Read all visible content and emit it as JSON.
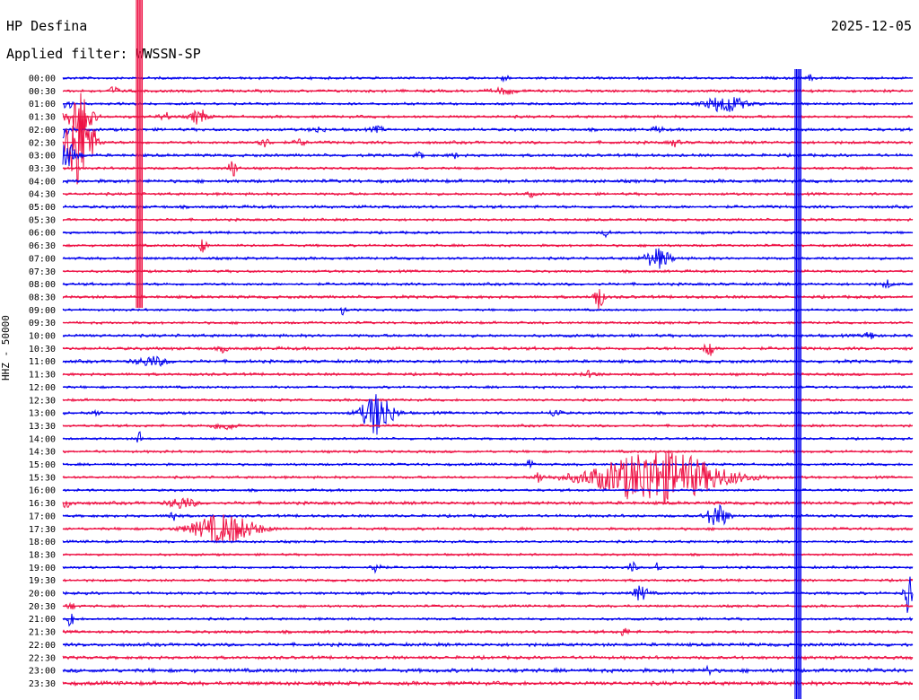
{
  "header": {
    "station": "HP Desfina",
    "filter": "Applied filter: WWSSN-SP",
    "date": "2025-12-05"
  },
  "colors": {
    "blue": "#0000ee",
    "red": "#ee1144"
  },
  "chart_data": {
    "type": "line",
    "title": "HP Desfina",
    "subtitle": "Applied filter: WWSSN-SP",
    "date": "2025-12-05",
    "ylabel": "HHZ - 50000",
    "grid": false,
    "row_interval_minutes": 30,
    "rows": [
      {
        "label": "00:00",
        "color": "blue",
        "noise": 1.2,
        "events": [
          {
            "x": 0.52,
            "amp": 4,
            "w": 0.003
          },
          {
            "x": 0.88,
            "amp": 3,
            "w": 0.003
          }
        ]
      },
      {
        "label": "00:30",
        "color": "red",
        "noise": 1.3,
        "events": [
          {
            "x": 0.06,
            "amp": 6,
            "w": 0.003
          },
          {
            "x": 0.52,
            "amp": 3,
            "w": 0.01
          }
        ]
      },
      {
        "label": "01:00",
        "color": "blue",
        "noise": 1.2,
        "events": [
          {
            "x": 0.005,
            "amp": 8,
            "w": 0.004
          },
          {
            "x": 0.78,
            "amp": 10,
            "w": 0.015
          }
        ]
      },
      {
        "label": "01:30",
        "color": "red",
        "noise": 1.3,
        "events": [
          {
            "x": 0.02,
            "amp": 20,
            "w": 0.01
          },
          {
            "x": 0.16,
            "amp": 9,
            "w": 0.006
          },
          {
            "x": 0.12,
            "amp": 5,
            "w": 0.004
          }
        ]
      },
      {
        "label": "02:00",
        "color": "blue",
        "noise": 1.4,
        "events": [
          {
            "x": 0.0,
            "amp": 8,
            "w": 0.005
          },
          {
            "x": 0.3,
            "amp": 3,
            "w": 0.005
          },
          {
            "x": 0.37,
            "amp": 3,
            "w": 0.005
          },
          {
            "x": 0.7,
            "amp": 3,
            "w": 0.004
          }
        ]
      },
      {
        "label": "02:30",
        "color": "red",
        "noise": 1.4,
        "events": [
          {
            "x": 0.02,
            "amp": 60,
            "w": 0.01
          },
          {
            "x": 0.235,
            "amp": 5,
            "w": 0.006
          },
          {
            "x": 0.28,
            "amp": 4,
            "w": 0.004
          },
          {
            "x": 0.72,
            "amp": 4,
            "w": 0.004
          }
        ]
      },
      {
        "label": "03:00",
        "color": "blue",
        "noise": 1.4,
        "events": [
          {
            "x": 0.006,
            "amp": 14,
            "w": 0.008
          },
          {
            "x": 0.42,
            "amp": 3,
            "w": 0.003
          },
          {
            "x": 0.46,
            "amp": 3,
            "w": 0.003
          }
        ]
      },
      {
        "label": "03:30",
        "color": "red",
        "noise": 1.2,
        "events": [
          {
            "x": 0.2,
            "amp": 9,
            "w": 0.004
          }
        ]
      },
      {
        "label": "04:00",
        "color": "blue",
        "noise": 1.6,
        "events": []
      },
      {
        "label": "04:30",
        "color": "red",
        "noise": 1.3,
        "events": [
          {
            "x": 0.55,
            "amp": 3,
            "w": 0.003
          }
        ]
      },
      {
        "label": "05:00",
        "color": "blue",
        "noise": 1.4,
        "events": []
      },
      {
        "label": "05:30",
        "color": "red",
        "noise": 1.2,
        "events": []
      },
      {
        "label": "06:00",
        "color": "blue",
        "noise": 1.2,
        "events": [
          {
            "x": 0.64,
            "amp": 4,
            "w": 0.003
          }
        ]
      },
      {
        "label": "06:30",
        "color": "red",
        "noise": 1.2,
        "events": [
          {
            "x": 0.165,
            "amp": 8,
            "w": 0.003
          }
        ]
      },
      {
        "label": "07:00",
        "color": "blue",
        "noise": 1.3,
        "events": [
          {
            "x": 0.7,
            "amp": 11,
            "w": 0.01
          }
        ]
      },
      {
        "label": "07:30",
        "color": "red",
        "noise": 1.2,
        "events": []
      },
      {
        "label": "08:00",
        "color": "blue",
        "noise": 1.3,
        "events": [
          {
            "x": 0.97,
            "amp": 4,
            "w": 0.004
          }
        ]
      },
      {
        "label": "08:30",
        "color": "red",
        "noise": 1.4,
        "events": [
          {
            "x": 0.63,
            "amp": 14,
            "w": 0.004
          }
        ]
      },
      {
        "label": "09:00",
        "color": "blue",
        "noise": 1.1,
        "events": [
          {
            "x": 0.33,
            "amp": 6,
            "w": 0.002
          }
        ]
      },
      {
        "label": "09:30",
        "color": "red",
        "noise": 1.2,
        "events": []
      },
      {
        "label": "10:00",
        "color": "blue",
        "noise": 1.4,
        "events": [
          {
            "x": 0.95,
            "amp": 4,
            "w": 0.005
          }
        ]
      },
      {
        "label": "10:30",
        "color": "red",
        "noise": 1.5,
        "events": [
          {
            "x": 0.76,
            "amp": 14,
            "w": 0.003
          },
          {
            "x": 0.19,
            "amp": 4,
            "w": 0.003
          }
        ]
      },
      {
        "label": "11:00",
        "color": "blue",
        "noise": 1.5,
        "events": [
          {
            "x": 0.105,
            "amp": 5,
            "w": 0.012
          }
        ]
      },
      {
        "label": "11:30",
        "color": "red",
        "noise": 1.3,
        "events": [
          {
            "x": 0.62,
            "amp": 3,
            "w": 0.006
          }
        ]
      },
      {
        "label": "12:00",
        "color": "blue",
        "noise": 1.2,
        "events": []
      },
      {
        "label": "12:30",
        "color": "red",
        "noise": 1.2,
        "events": []
      },
      {
        "label": "13:00",
        "color": "blue",
        "noise": 1.3,
        "events": [
          {
            "x": 0.37,
            "amp": 24,
            "w": 0.012
          },
          {
            "x": 0.04,
            "amp": 3,
            "w": 0.004
          },
          {
            "x": 0.58,
            "amp": 5,
            "w": 0.004
          }
        ]
      },
      {
        "label": "13:30",
        "color": "red",
        "noise": 1.2,
        "events": [
          {
            "x": 0.19,
            "amp": 4,
            "w": 0.01
          }
        ]
      },
      {
        "label": "14:00",
        "color": "blue",
        "noise": 1.1,
        "events": [
          {
            "x": 0.09,
            "amp": 8,
            "w": 0.002
          }
        ]
      },
      {
        "label": "14:30",
        "color": "red",
        "noise": 1.2,
        "events": []
      },
      {
        "label": "15:00",
        "color": "blue",
        "noise": 1.2,
        "events": [
          {
            "x": 0.55,
            "amp": 4,
            "w": 0.003
          }
        ]
      },
      {
        "label": "15:30",
        "color": "red",
        "noise": 1.2,
        "events": [
          {
            "x": 0.56,
            "amp": 7,
            "w": 0.003
          },
          {
            "x": 0.7,
            "amp": 30,
            "w": 0.05
          }
        ]
      },
      {
        "label": "16:00",
        "color": "blue",
        "noise": 1.2,
        "events": []
      },
      {
        "label": "16:30",
        "color": "red",
        "noise": 1.5,
        "events": [
          {
            "x": 0.0,
            "amp": 5,
            "w": 0.008
          },
          {
            "x": 0.14,
            "amp": 6,
            "w": 0.01
          }
        ]
      },
      {
        "label": "17:00",
        "color": "blue",
        "noise": 1.3,
        "events": [
          {
            "x": 0.13,
            "amp": 6,
            "w": 0.004
          },
          {
            "x": 0.77,
            "amp": 14,
            "w": 0.008
          }
        ]
      },
      {
        "label": "17:30",
        "color": "red",
        "noise": 1.3,
        "events": [
          {
            "x": 0.19,
            "amp": 16,
            "w": 0.025
          }
        ]
      },
      {
        "label": "18:00",
        "color": "blue",
        "noise": 1.2,
        "events": []
      },
      {
        "label": "18:30",
        "color": "red",
        "noise": 1.1,
        "events": []
      },
      {
        "label": "19:00",
        "color": "blue",
        "noise": 1.2,
        "events": [
          {
            "x": 0.37,
            "amp": 8,
            "w": 0.004
          },
          {
            "x": 0.67,
            "amp": 6,
            "w": 0.003
          },
          {
            "x": 0.7,
            "amp": 6,
            "w": 0.003
          }
        ]
      },
      {
        "label": "19:30",
        "color": "red",
        "noise": 1.2,
        "events": []
      },
      {
        "label": "20:00",
        "color": "blue",
        "noise": 1.3,
        "events": [
          {
            "x": 0.68,
            "amp": 8,
            "w": 0.006
          },
          {
            "x": 0.995,
            "amp": 30,
            "w": 0.003
          }
        ]
      },
      {
        "label": "20:30",
        "color": "red",
        "noise": 1.2,
        "events": [
          {
            "x": 0.01,
            "amp": 3,
            "w": 0.004
          }
        ]
      },
      {
        "label": "21:00",
        "color": "blue",
        "noise": 1.2,
        "events": [
          {
            "x": 0.01,
            "amp": 15,
            "w": 0.002
          }
        ]
      },
      {
        "label": "21:30",
        "color": "red",
        "noise": 1.4,
        "events": [
          {
            "x": 0.66,
            "amp": 4,
            "w": 0.004
          }
        ]
      },
      {
        "label": "22:00",
        "color": "blue",
        "noise": 1.6,
        "events": []
      },
      {
        "label": "22:30",
        "color": "red",
        "noise": 1.5,
        "events": []
      },
      {
        "label": "23:00",
        "color": "blue",
        "noise": 1.8,
        "events": [
          {
            "x": 0.76,
            "amp": 5,
            "w": 0.003
          }
        ]
      },
      {
        "label": "23:30",
        "color": "red",
        "noise": 1.8,
        "events": []
      }
    ],
    "artifacts": [
      {
        "type": "vertical_glitch",
        "x": 0.09,
        "color": "red",
        "from_row": 0,
        "to_row": 17
      },
      {
        "type": "vertical_glitch",
        "x": 0.865,
        "color": "blue",
        "from_row": 0,
        "to_row": 48
      }
    ]
  }
}
